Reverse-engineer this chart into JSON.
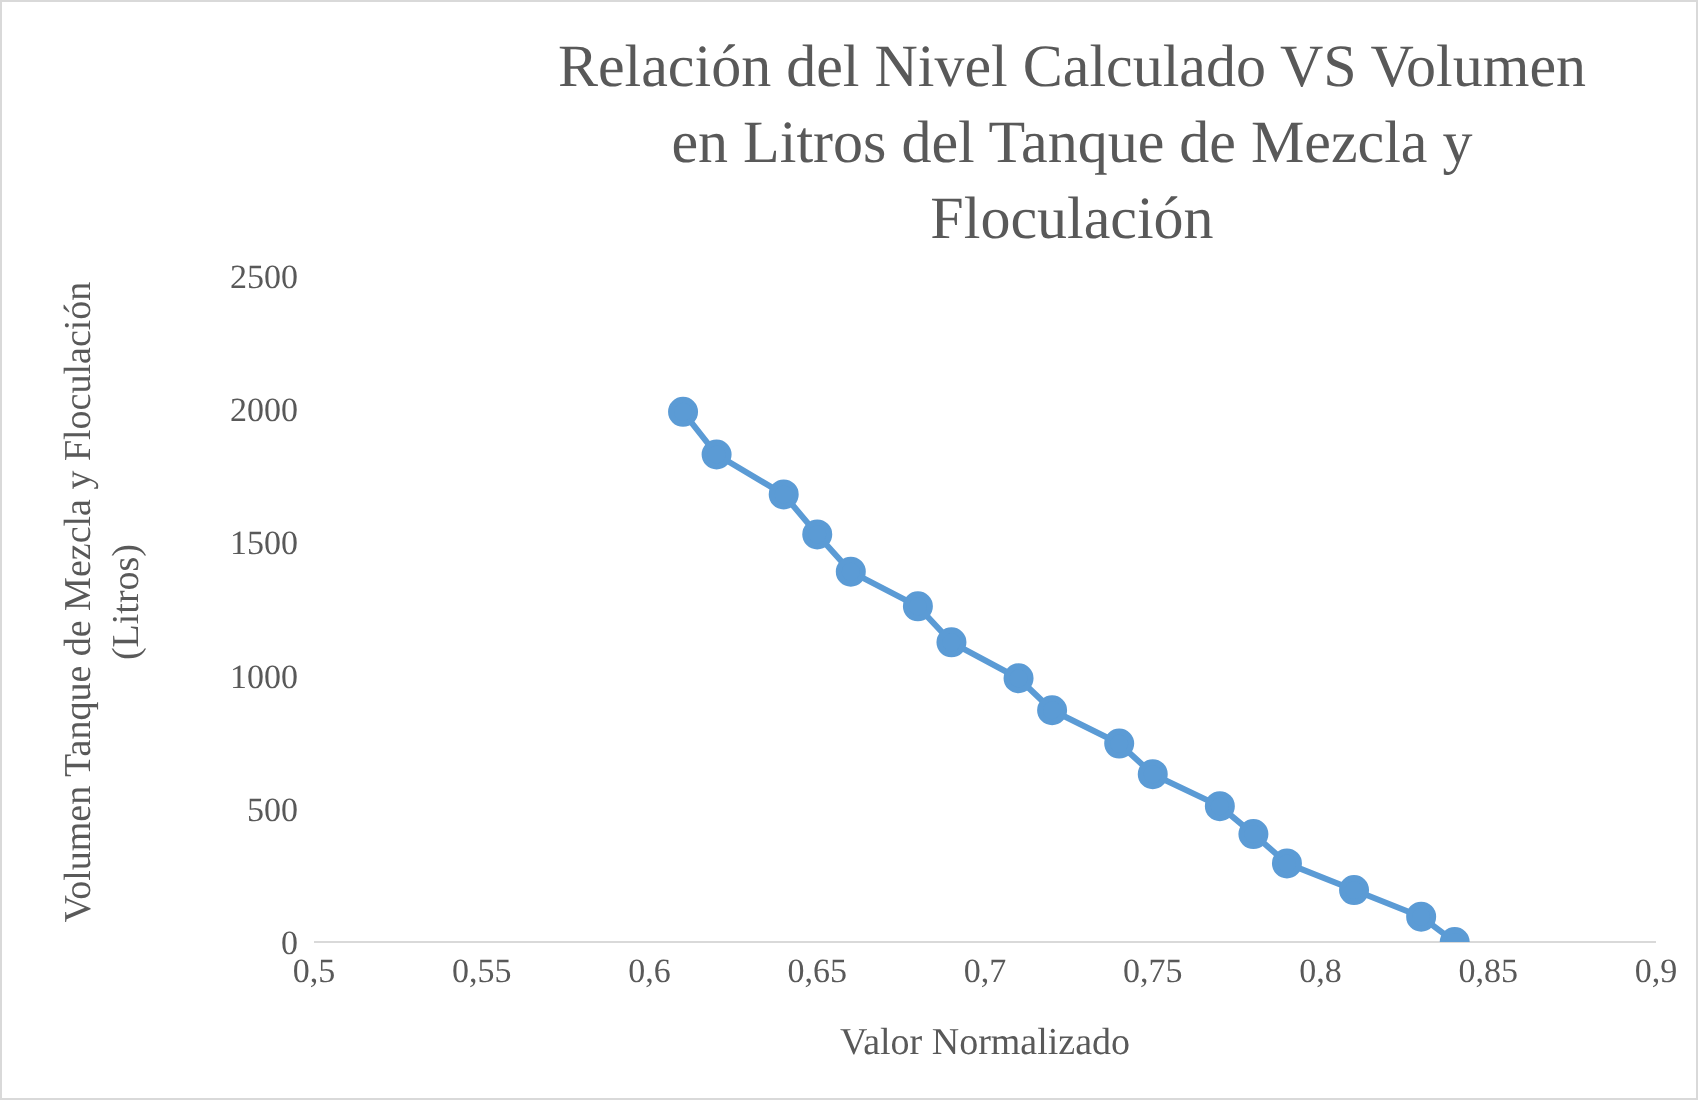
{
  "chart_data": {
    "type": "line",
    "title": "Relación del Nivel Calculado VS Volumen en Litros del Tanque de Mezcla y Floculación",
    "xlabel": "Valor Normalizado",
    "ylabel": "Volumen Tanque de Mezcla y Floculación (Litros)",
    "x": [
      0.61,
      0.62,
      0.64,
      0.65,
      0.66,
      0.68,
      0.69,
      0.71,
      0.72,
      0.74,
      0.75,
      0.77,
      0.78,
      0.79,
      0.81,
      0.83,
      0.84
    ],
    "series": [
      {
        "color": "#5b9bd5",
        "values": [
          1990,
          1830,
          1680,
          1530,
          1390,
          1260,
          1125,
          990,
          870,
          745,
          630,
          510,
          405,
          295,
          195,
          95,
          0
        ]
      }
    ],
    "xlim": [
      0.5,
      0.9
    ],
    "xticks": [
      {
        "value": 0.5,
        "label": "0,5"
      },
      {
        "value": 0.55,
        "label": "0,55"
      },
      {
        "value": 0.6,
        "label": "0,6"
      },
      {
        "value": 0.65,
        "label": "0,65"
      },
      {
        "value": 0.7,
        "label": "0,7"
      },
      {
        "value": 0.75,
        "label": "0,75"
      },
      {
        "value": 0.8,
        "label": "0,8"
      },
      {
        "value": 0.85,
        "label": "0,85"
      },
      {
        "value": 0.9,
        "label": "0,9"
      }
    ],
    "ylim": [
      0,
      2500
    ],
    "yticks": [
      0,
      500,
      1000,
      1500,
      2000,
      2500
    ],
    "grid": false,
    "legend": false,
    "marker": "circle",
    "line_style": "solid"
  }
}
